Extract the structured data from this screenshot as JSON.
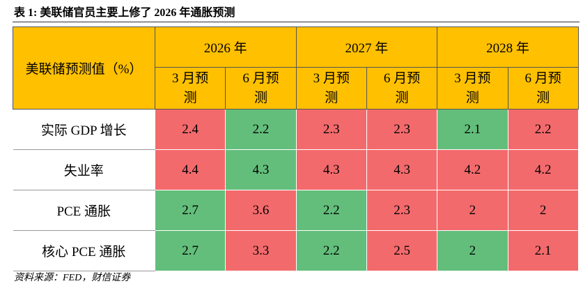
{
  "header": {
    "title": "表 1:  美联储官员主要上修了 2026 年通胀预测"
  },
  "table": {
    "corner": "美联储预测值（%）",
    "years": [
      "2026 年",
      "2027 年",
      "2028 年"
    ],
    "subheaders": [
      "3 月预测",
      "6 月预测",
      "3 月预测",
      "6 月预测",
      "3 月预测",
      "6 月预测"
    ],
    "rows": [
      {
        "label": "实际 GDP 增长",
        "values": [
          2.4,
          2.2,
          2.3,
          2.3,
          2.1,
          2.2
        ],
        "colors": [
          "#f36a6c",
          "#63be7b",
          "#f36a6c",
          "#f36a6c",
          "#63be7b",
          "#f36a6c"
        ]
      },
      {
        "label": "失业率",
        "values": [
          4.4,
          4.3,
          4.3,
          4.3,
          4.2,
          4.2
        ],
        "colors": [
          "#f36a6c",
          "#63be7b",
          "#f36a6c",
          "#f36a6c",
          "#f36a6c",
          "#f36a6c"
        ]
      },
      {
        "label": "PCE 通胀",
        "values": [
          2.7,
          3.6,
          2.2,
          2.3,
          2,
          2
        ],
        "colors": [
          "#63be7b",
          "#f36a6c",
          "#63be7b",
          "#f36a6c",
          "#f36a6c",
          "#f36a6c"
        ]
      },
      {
        "label": "核心 PCE 通胀",
        "values": [
          2.7,
          3.3,
          2.2,
          2.5,
          2,
          2.1
        ],
        "colors": [
          "#63be7b",
          "#f36a6c",
          "#63be7b",
          "#f36a6c",
          "#63be7b",
          "#f36a6c"
        ]
      }
    ]
  },
  "source": "资料来源：FED，财信证券"
}
